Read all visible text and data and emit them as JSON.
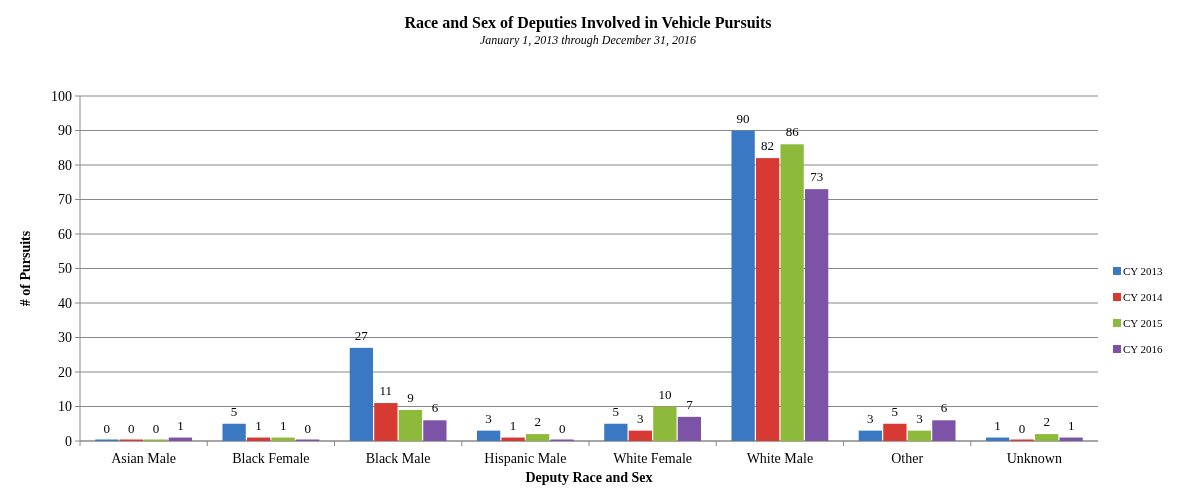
{
  "chart_data": {
    "type": "bar",
    "title": "Race and Sex of Deputies Involved in Vehicle Pursuits",
    "subtitle": "January 1, 2013 through December 31, 2016",
    "xlabel": "Deputy Race and Sex",
    "ylabel": "# of Pursuits",
    "categories": [
      "Asian Male",
      "Black Female",
      "Black Male",
      "Hispanic Male",
      "White Female",
      "White Male",
      "Other",
      "Unknown"
    ],
    "series": [
      {
        "name": "CY 2013",
        "color": "#3a78c3",
        "values": [
          0,
          5,
          27,
          3,
          5,
          90,
          3,
          1
        ]
      },
      {
        "name": "CY 2014",
        "color": "#d63a33",
        "values": [
          0,
          1,
          11,
          1,
          3,
          82,
          5,
          0
        ]
      },
      {
        "name": "CY 2015",
        "color": "#8dba3a",
        "values": [
          0,
          1,
          9,
          2,
          10,
          86,
          3,
          2
        ]
      },
      {
        "name": "CY 2016",
        "color": "#7d53a8",
        "values": [
          1,
          0,
          6,
          0,
          7,
          73,
          6,
          1
        ]
      }
    ],
    "ylim": [
      0,
      100
    ],
    "yticks": [
      0,
      10,
      20,
      30,
      40,
      50,
      60,
      70,
      80,
      90,
      100
    ],
    "grid": "y",
    "legend": "right",
    "data_labels": true
  }
}
